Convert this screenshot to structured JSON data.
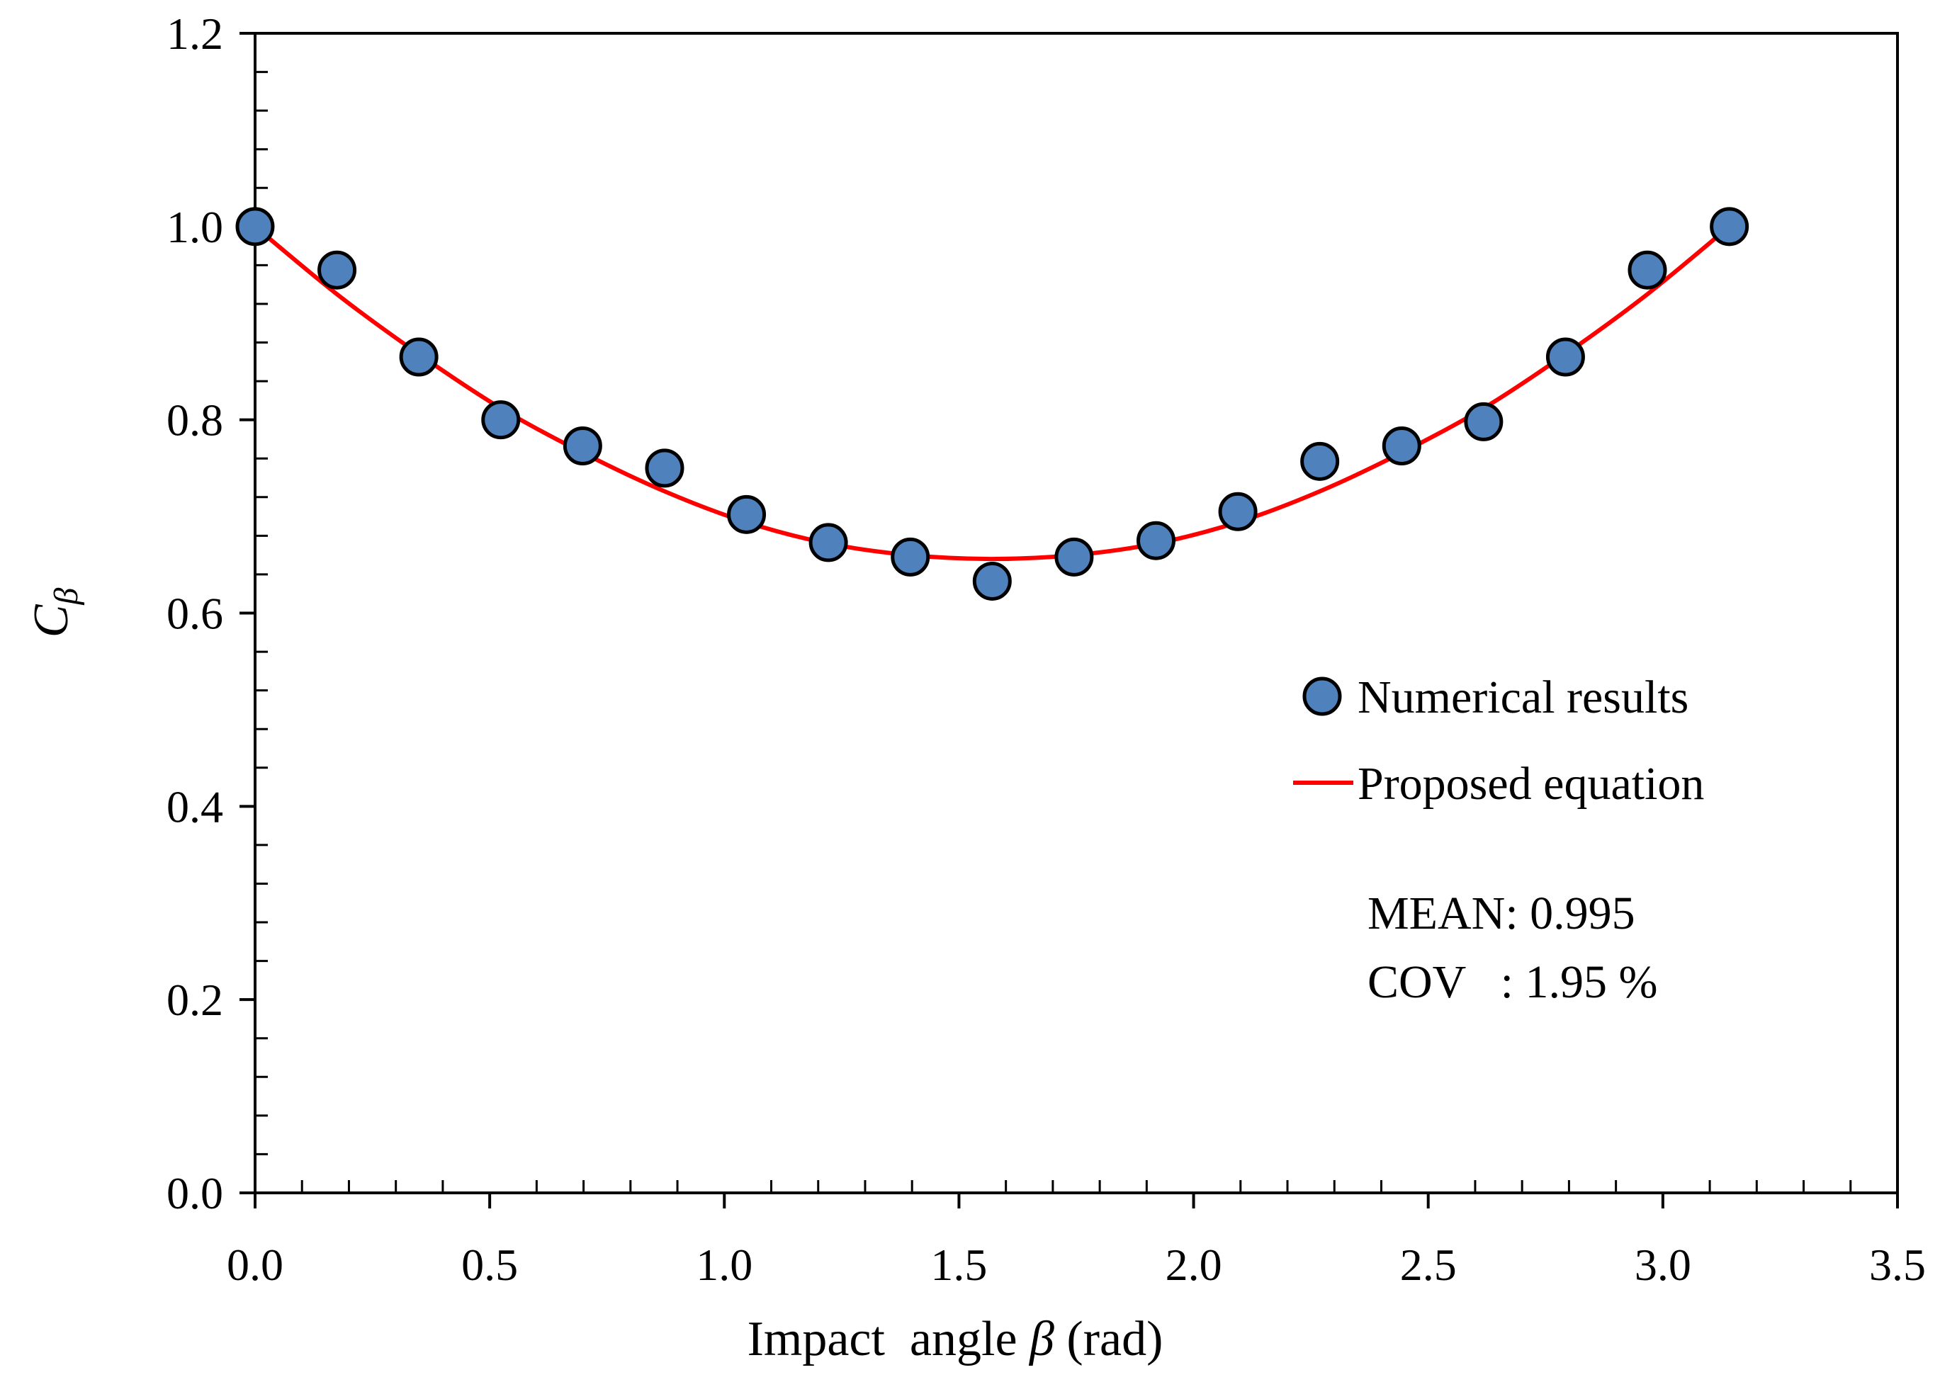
{
  "chart_data": {
    "type": "scatter",
    "title": "",
    "xlabel": {
      "prefix": "Impact  angle ",
      "symbol": "β",
      "suffix": " (rad)"
    },
    "ylabel": {
      "main": "C",
      "sub": "β"
    },
    "xlim": [
      0,
      3.5
    ],
    "ylim": [
      0,
      1.2
    ],
    "x_ticks": [
      "0.0",
      "0.5",
      "1.0",
      "1.5",
      "2.0",
      "2.5",
      "3.0",
      "3.5"
    ],
    "y_ticks": [
      "0.0",
      "0.2",
      "0.4",
      "0.6",
      "0.8",
      "1.0",
      "1.2"
    ],
    "series": [
      {
        "name": "Numerical results",
        "kind": "marker",
        "color": "#4f81bd",
        "x": [
          0.0,
          0.1745,
          0.349,
          0.5236,
          0.6981,
          0.8727,
          1.0472,
          1.2217,
          1.3963,
          1.5708,
          1.7453,
          1.9199,
          2.0944,
          2.2689,
          2.4435,
          2.618,
          2.7925,
          2.967,
          3.1416
        ],
        "values": [
          1.0,
          0.955,
          0.865,
          0.8,
          0.773,
          0.75,
          0.702,
          0.673,
          0.658,
          0.633,
          0.658,
          0.675,
          0.705,
          0.757,
          0.773,
          0.798,
          0.865,
          0.955,
          1.0
        ]
      },
      {
        "name": "Proposed equation",
        "kind": "line",
        "color": "#ff0000",
        "x": [
          0.0,
          0.1745,
          0.349,
          0.5236,
          0.6981,
          0.8727,
          1.0472,
          1.2217,
          1.3963,
          1.5708,
          1.7453,
          1.9199,
          2.0944,
          2.2689,
          2.4435,
          2.618,
          2.7925,
          2.967,
          3.1416
        ],
        "values": [
          1.0,
          0.93,
          0.868,
          0.812,
          0.766,
          0.726,
          0.694,
          0.672,
          0.66,
          0.656,
          0.66,
          0.672,
          0.694,
          0.726,
          0.766,
          0.812,
          0.868,
          0.93,
          1.0
        ]
      }
    ],
    "legend": {
      "position": "right",
      "items": [
        "Numerical results",
        "Proposed equation"
      ]
    },
    "annotations": {
      "mean_label": "MEAN: 0.995",
      "cov_label": "COV   : 1.95 %"
    },
    "grid": false
  }
}
